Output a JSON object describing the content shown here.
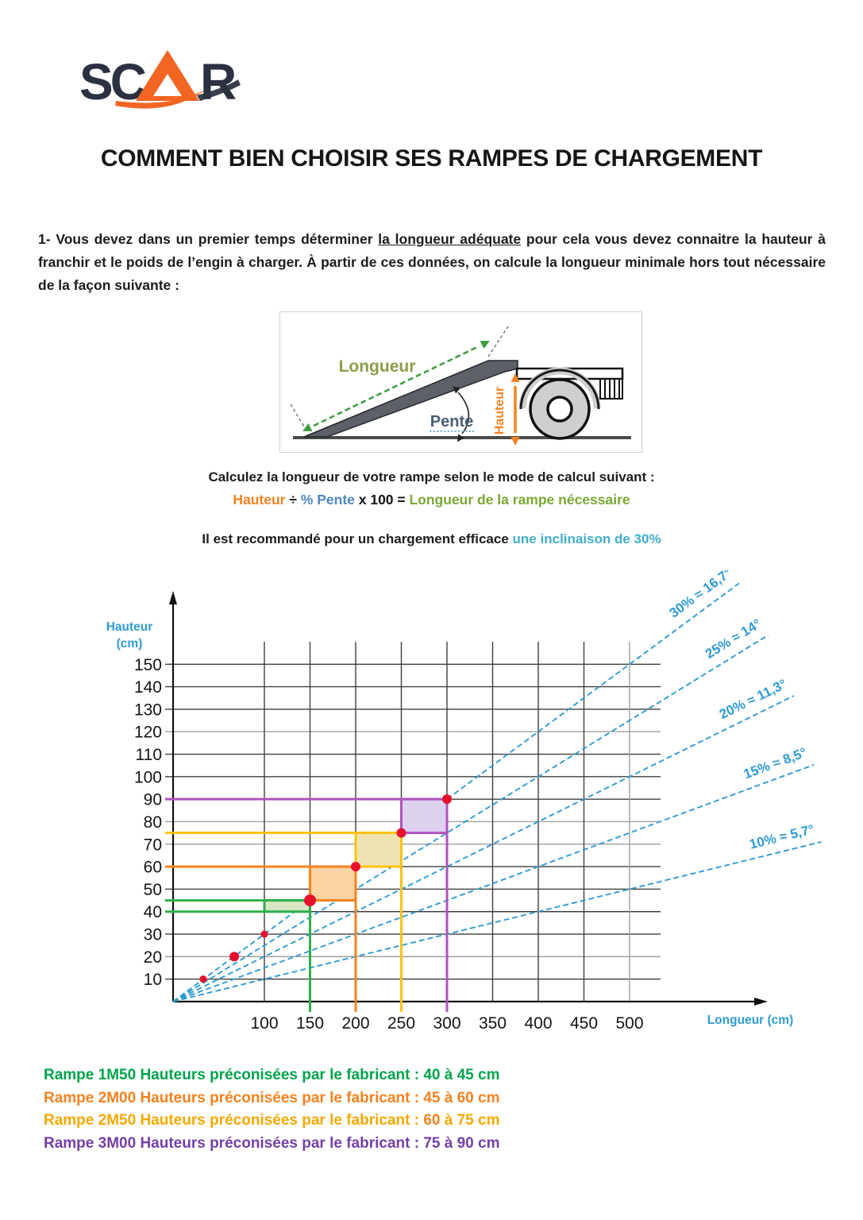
{
  "logo": {
    "text": "SCAR"
  },
  "title": "COMMENT BIEN CHOISIR SES RAMPES DE CHARGEMENT",
  "intro": {
    "prefix": "1- Vous devez dans un premier temps déterminer ",
    "bold_underline": "la longueur adéquate",
    "suffix": " pour cela vous devez connaitre la hauteur à franchir et le poids de l’engin à charger. À partir de ces données, on calcule la longueur minimale hors tout nécessaire de la façon suivante :"
  },
  "diagram": {
    "labels": {
      "longueur": "Longueur",
      "pente": "Pente",
      "hauteur": "Hauteur"
    }
  },
  "formula": {
    "heading": "Calculez la longueur de votre rampe selon le mode de calcul suivant :",
    "hauteur": "Hauteur",
    "divide": " ÷ ",
    "pente": "% Pente",
    "times": " x 100 = ",
    "result": "Longueur de la rampe nécessaire"
  },
  "recommendation": {
    "prefix": "Il est recommandé pour un chargement efficace ",
    "highlight": "une inclinaison de 30%"
  },
  "chart_data": {
    "type": "line",
    "title": "",
    "xlabel": "Longueur (cm)",
    "ylabel": "Hauteur (cm)",
    "ylabel_lines": [
      "Hauteur",
      "(cm)"
    ],
    "xlim": [
      0,
      640
    ],
    "ylim": [
      0,
      185
    ],
    "x_ticks": [
      100,
      150,
      200,
      250,
      300,
      350,
      400,
      450,
      500
    ],
    "y_ticks": [
      10,
      20,
      30,
      40,
      50,
      60,
      70,
      80,
      90,
      100,
      110,
      120,
      130,
      140,
      150
    ],
    "grid": true,
    "line_color": "#2E9BD6",
    "point_color": "#E8112D",
    "axis_label_color": "#2E9BD6",
    "slope_lines": [
      {
        "label": "30% ≈ 16,7°",
        "slope_pct": 30,
        "x_end": 620
      },
      {
        "label": "25% ≈ 14°",
        "slope_pct": 25,
        "x_end": 652
      },
      {
        "label": "20% ≈ 11,3°",
        "slope_pct": 20,
        "x_end": 680
      },
      {
        "label": "15% ≈ 8,5°",
        "slope_pct": 15,
        "x_end": 702
      },
      {
        "label": "10% ≈ 5,7°",
        "slope_pct": 10,
        "x_end": 710
      }
    ],
    "ramp_steps": [
      {
        "name": "Rampe 1M50",
        "length_cm": 150,
        "height_min": 40,
        "height_max": 45,
        "color": "#2EAF4B",
        "fill": "#D9E6C3"
      },
      {
        "name": "Rampe 2M00",
        "length_cm": 200,
        "height_min": 45,
        "height_max": 60,
        "color": "#F58220",
        "fill": "#FBD4A5"
      },
      {
        "name": "Rampe 2M50",
        "length_cm": 250,
        "height_min": 60,
        "height_max": 75,
        "color": "#FFC20E",
        "fill": "#EFE3B2"
      },
      {
        "name": "Rampe 3M00",
        "length_cm": 300,
        "height_min": 75,
        "height_max": 90,
        "color": "#B052C0",
        "fill": "#DCD2F0"
      }
    ],
    "points_on_30pct_line": [
      [
        33,
        10
      ],
      [
        67,
        20
      ],
      [
        100,
        30
      ],
      [
        150,
        45
      ],
      [
        200,
        60
      ],
      [
        250,
        75
      ],
      [
        300,
        90
      ]
    ]
  },
  "legend": {
    "rows": [
      {
        "parts": [
          {
            "text": "Rampe 1M50 Hauteurs préconisées par le fabricant : 40 à 45 cm",
            "color": "#00A44A"
          }
        ]
      },
      {
        "parts": [
          {
            "text": "Rampe 2M00 Hauteurs préconisées par le fabricant : 45 à 60 cm",
            "color": "#F58220"
          }
        ]
      },
      {
        "parts": [
          {
            "text": "Rampe 2M50 Hauteurs préconisées par le fabricant : ",
            "color": "#F5A800"
          },
          {
            "text": "60",
            "color": "#F58220"
          },
          {
            "text": " à 75 cm",
            "color": "#F5A800"
          }
        ]
      },
      {
        "parts": [
          {
            "text": "Rampe 3M00 Hauteurs préconisées par le fabricant : 75 à 90 cm",
            "color": "#7340A8"
          }
        ]
      }
    ]
  }
}
